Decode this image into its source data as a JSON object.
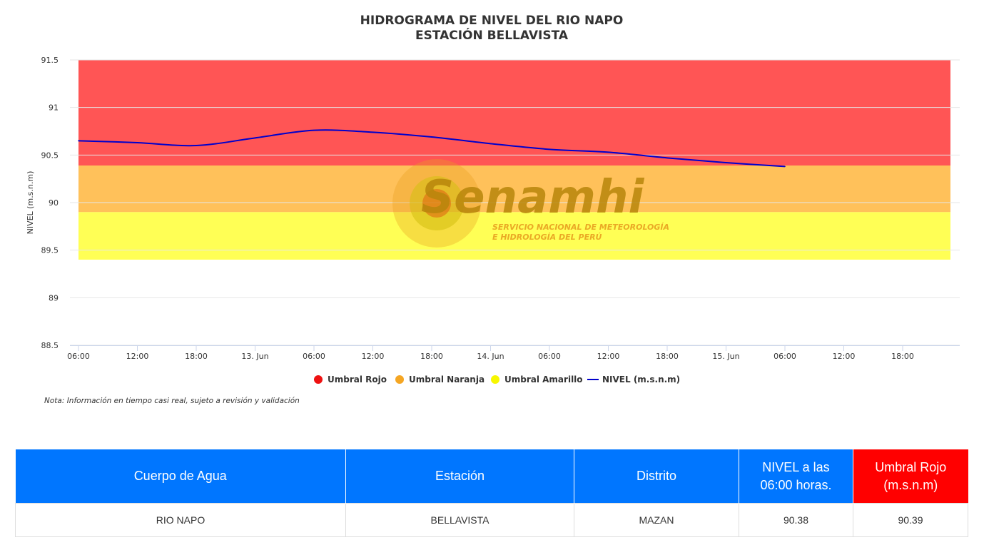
{
  "chart_data": {
    "type": "line",
    "title": [
      "HIDROGRAMA DE NIVEL DEL RIO NAPO",
      "ESTACIÓN BELLAVISTA"
    ],
    "ylabel": "NIVEL (m.s.n.m)",
    "ylim": [
      88.5,
      91.5
    ],
    "yticks": [
      "88.5",
      "89",
      "89.5",
      "90",
      "90.5",
      "91",
      "91.5"
    ],
    "x_start": "12 Jun 06:00",
    "xticks": [
      "06:00",
      "12:00",
      "18:00",
      "13. Jun",
      "06:00",
      "12:00",
      "18:00",
      "14. Jun",
      "06:00",
      "12:00",
      "18:00",
      "15. Jun",
      "06:00",
      "12:00",
      "18:00"
    ],
    "bands": [
      {
        "name": "Umbral Rojo",
        "from": 90.39,
        "to": 91.5,
        "color": "#ff5555"
      },
      {
        "name": "Umbral Naranja",
        "from": 89.9,
        "to": 90.39,
        "color": "#ffc15a"
      },
      {
        "name": "Umbral Amarillo",
        "from": 89.4,
        "to": 89.9,
        "color": "#ffff55"
      }
    ],
    "series": [
      {
        "name": "NIVEL (m.s.n.m)",
        "color": "#0000cc",
        "x": [
          "12 Jun 06:00",
          "12 Jun 12:00",
          "12 Jun 18:00",
          "13 Jun 00:00",
          "13 Jun 06:00",
          "13 Jun 12:00",
          "13 Jun 18:00",
          "14 Jun 00:00",
          "14 Jun 06:00",
          "14 Jun 12:00",
          "14 Jun 18:00",
          "15 Jun 00:00",
          "15 Jun 06:00"
        ],
        "values": [
          90.65,
          90.63,
          90.6,
          90.68,
          90.76,
          90.74,
          90.69,
          90.62,
          90.56,
          90.53,
          90.47,
          90.42,
          90.38
        ]
      }
    ],
    "legend": [
      {
        "name": "Umbral Rojo",
        "color": "#ee1111"
      },
      {
        "name": "Umbral Naranja",
        "color": "#f5a623"
      },
      {
        "name": "Umbral Amarillo",
        "color": "#f7f700"
      },
      {
        "name": "NIVEL (m.s.n.m)",
        "color": "#0000cc"
      }
    ],
    "legend_position": "bottom-center",
    "grid": true
  },
  "watermark": {
    "brand": "Senamhi",
    "line1": "SERVICIO NACIONAL DE METEOROLOGÍA",
    "line2": "E HIDROLOGÍA DEL PERÚ"
  },
  "note": "Nota: Información en tiempo casi real, sujeto a revisión y validación",
  "table": {
    "headers": [
      "Cuerpo de Agua",
      "Estación",
      "Distrito",
      "NIVEL a las 06:00 horas.",
      "Umbral Rojo (m.s.n.m)"
    ],
    "row": [
      "RIO NAPO",
      "BELLAVISTA",
      "MAZAN",
      "90.38",
      "90.39"
    ],
    "header_blue": "#0076ff",
    "header_red": "#ff0000"
  }
}
